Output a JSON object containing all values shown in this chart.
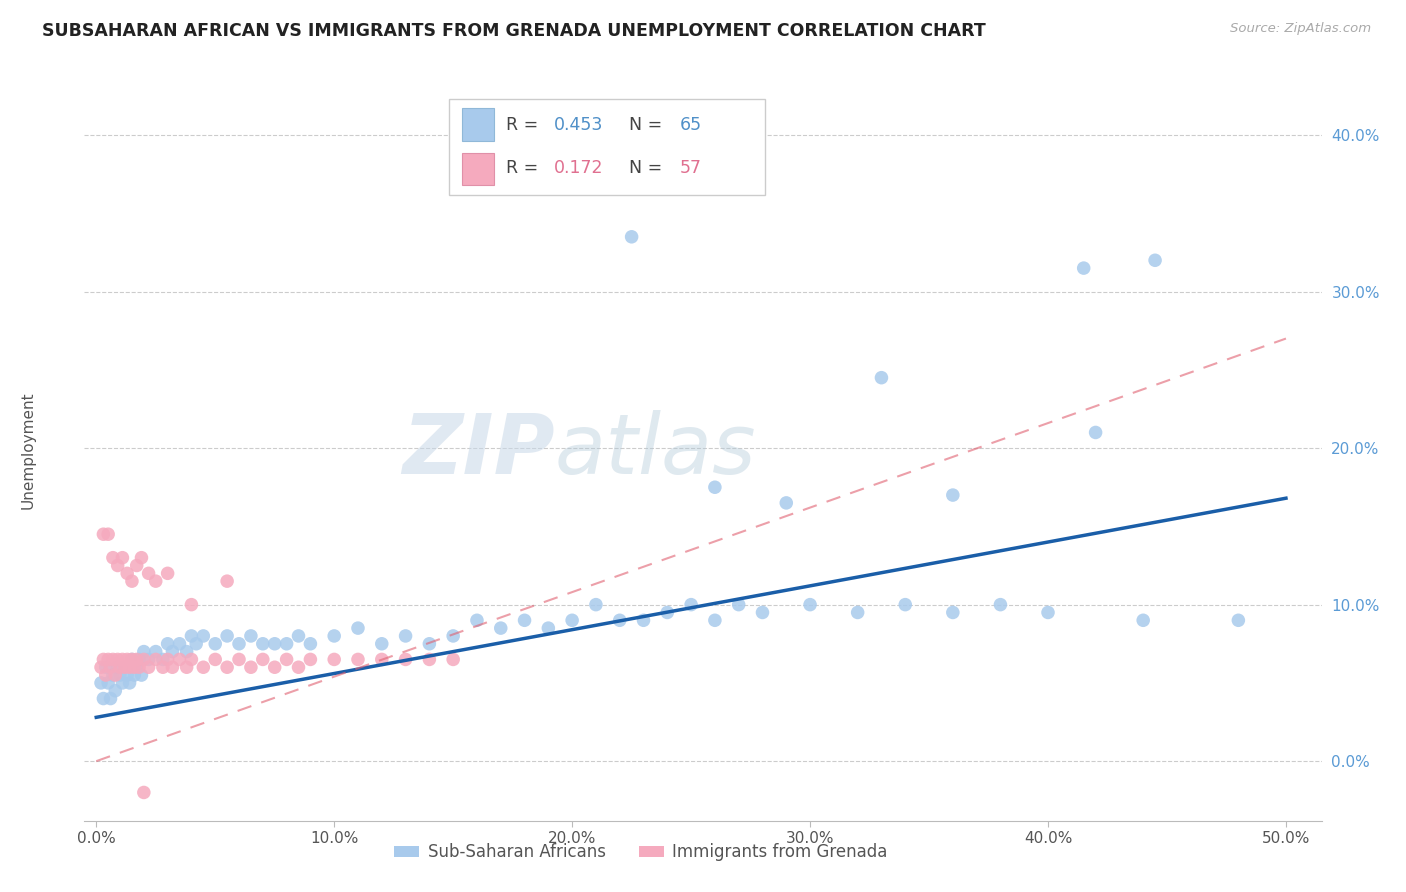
{
  "title": "SUBSAHARAN AFRICAN VS IMMIGRANTS FROM GRENADA UNEMPLOYMENT CORRELATION CHART",
  "source": "Source: ZipAtlas.com",
  "ylabel": "Unemployment",
  "xlabel_vals": [
    0.0,
    0.1,
    0.2,
    0.3,
    0.4,
    0.5
  ],
  "ylabel_vals": [
    0.0,
    0.1,
    0.2,
    0.3,
    0.4
  ],
  "xlim": [
    -0.005,
    0.515
  ],
  "ylim": [
    -0.038,
    0.435
  ],
  "legend1_label": "Sub-Saharan Africans",
  "legend2_label": "Immigrants from Grenada",
  "R1": 0.453,
  "N1": 65,
  "R2": 0.172,
  "N2": 57,
  "blue_color": "#A8CAEC",
  "pink_color": "#F5AABE",
  "blue_line_color": "#1A5EA8",
  "pink_line_color": "#E06070",
  "watermark_zip": "ZIP",
  "watermark_atlas": "atlas",
  "blue_line_x0": 0.0,
  "blue_line_y0": 0.028,
  "blue_line_x1": 0.5,
  "blue_line_y1": 0.168,
  "pink_line_x0": 0.0,
  "pink_line_y0": 0.0,
  "pink_line_x1": 0.5,
  "pink_line_y1": 0.27,
  "blue_x": [
    0.002,
    0.003,
    0.004,
    0.005,
    0.006,
    0.007,
    0.008,
    0.009,
    0.01,
    0.011,
    0.012,
    0.013,
    0.014,
    0.015,
    0.016,
    0.017,
    0.018,
    0.019,
    0.02,
    0.022,
    0.025,
    0.028,
    0.03,
    0.032,
    0.035,
    0.038,
    0.04,
    0.042,
    0.045,
    0.05,
    0.055,
    0.06,
    0.065,
    0.07,
    0.075,
    0.08,
    0.085,
    0.09,
    0.1,
    0.11,
    0.12,
    0.13,
    0.14,
    0.15,
    0.16,
    0.17,
    0.18,
    0.19,
    0.2,
    0.21,
    0.22,
    0.23,
    0.24,
    0.25,
    0.26,
    0.27,
    0.28,
    0.3,
    0.32,
    0.34,
    0.36,
    0.38,
    0.4,
    0.44,
    0.48
  ],
  "blue_y": [
    0.05,
    0.04,
    0.06,
    0.05,
    0.04,
    0.055,
    0.045,
    0.06,
    0.055,
    0.05,
    0.06,
    0.055,
    0.05,
    0.065,
    0.055,
    0.06,
    0.065,
    0.055,
    0.07,
    0.065,
    0.07,
    0.065,
    0.075,
    0.07,
    0.075,
    0.07,
    0.08,
    0.075,
    0.08,
    0.075,
    0.08,
    0.075,
    0.08,
    0.075,
    0.075,
    0.075,
    0.08,
    0.075,
    0.08,
    0.085,
    0.075,
    0.08,
    0.075,
    0.08,
    0.09,
    0.085,
    0.09,
    0.085,
    0.09,
    0.1,
    0.09,
    0.09,
    0.095,
    0.1,
    0.09,
    0.1,
    0.095,
    0.1,
    0.095,
    0.1,
    0.095,
    0.1,
    0.095,
    0.09,
    0.09
  ],
  "blue_outlier_x": [
    0.225,
    0.415,
    0.33,
    0.445,
    0.26,
    0.29,
    0.36,
    0.42
  ],
  "blue_outlier_y": [
    0.335,
    0.315,
    0.245,
    0.32,
    0.175,
    0.165,
    0.17,
    0.21
  ],
  "pink_x": [
    0.002,
    0.003,
    0.004,
    0.005,
    0.006,
    0.007,
    0.008,
    0.009,
    0.01,
    0.011,
    0.012,
    0.013,
    0.014,
    0.015,
    0.016,
    0.017,
    0.018,
    0.02,
    0.022,
    0.025,
    0.028,
    0.03,
    0.032,
    0.035,
    0.038,
    0.04,
    0.045,
    0.05,
    0.055,
    0.06,
    0.065,
    0.07,
    0.075,
    0.08,
    0.085,
    0.09,
    0.1,
    0.11,
    0.12,
    0.13,
    0.14,
    0.15
  ],
  "pink_y": [
    0.06,
    0.065,
    0.055,
    0.065,
    0.06,
    0.065,
    0.055,
    0.065,
    0.06,
    0.065,
    0.06,
    0.065,
    0.06,
    0.065,
    0.06,
    0.065,
    0.06,
    0.065,
    0.06,
    0.065,
    0.06,
    0.065,
    0.06,
    0.065,
    0.06,
    0.065,
    0.06,
    0.065,
    0.06,
    0.065,
    0.06,
    0.065,
    0.06,
    0.065,
    0.06,
    0.065,
    0.065,
    0.065,
    0.065,
    0.065,
    0.065,
    0.065
  ],
  "pink_outlier_x": [
    0.003,
    0.005,
    0.007,
    0.009,
    0.011,
    0.013,
    0.015,
    0.017,
    0.019,
    0.022,
    0.025,
    0.03,
    0.04,
    0.055,
    0.02
  ],
  "pink_outlier_y": [
    0.145,
    0.145,
    0.13,
    0.125,
    0.13,
    0.12,
    0.115,
    0.125,
    0.13,
    0.12,
    0.115,
    0.12,
    0.1,
    0.115,
    -0.02
  ]
}
